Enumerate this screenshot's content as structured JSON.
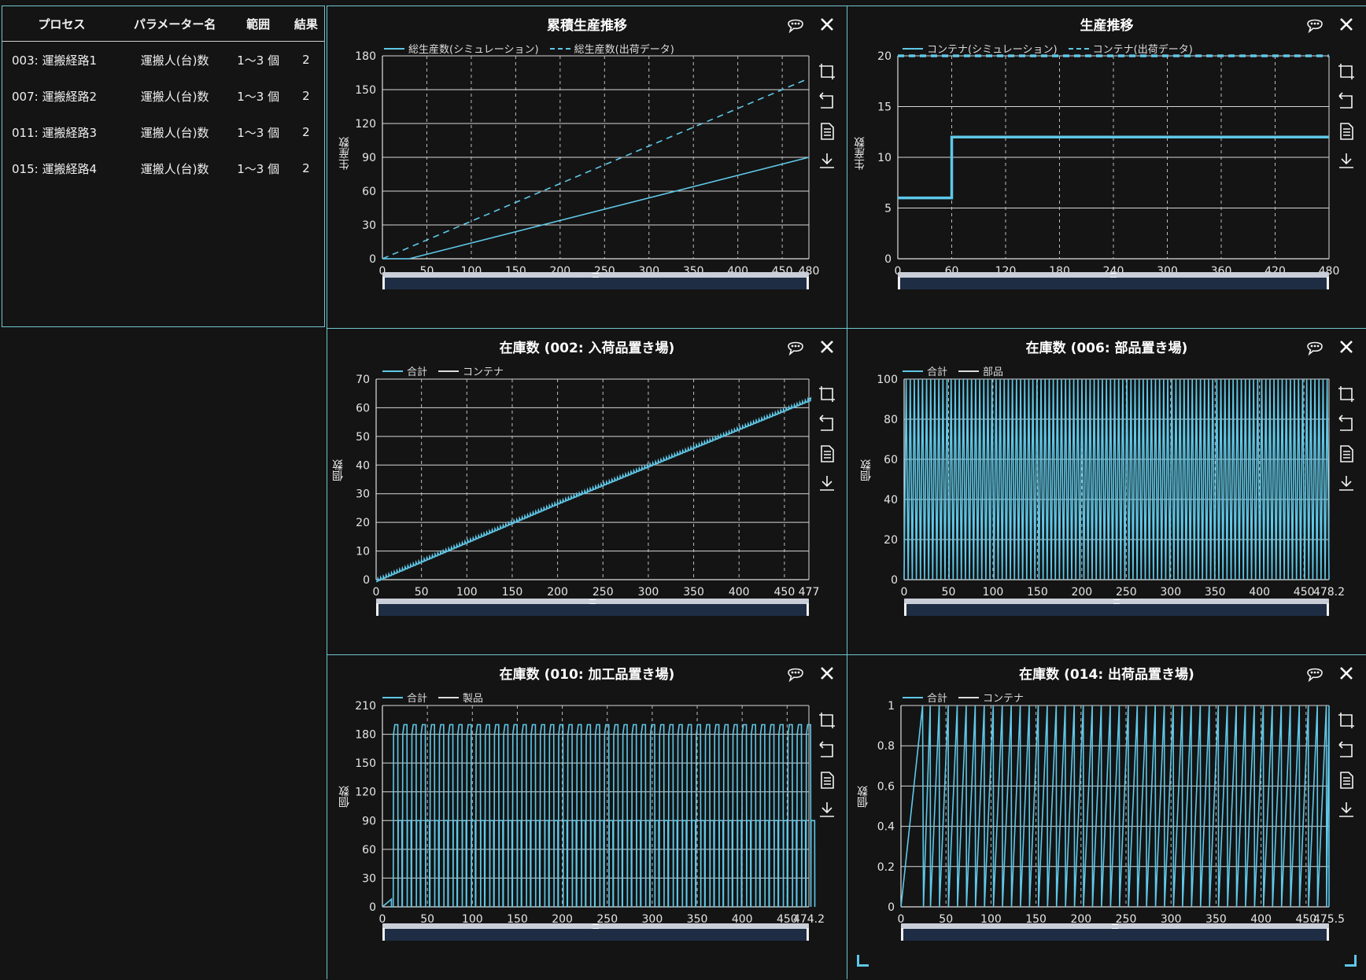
{
  "table": {
    "headers": [
      "プロセス",
      "パラメーター名",
      "範囲",
      "結果"
    ],
    "rows": [
      [
        "003: 運搬経路1",
        "運搬人(台)数",
        "1～3 個",
        "2"
      ],
      [
        "007: 運搬経路2",
        "運搬人(台)数",
        "1～3 個",
        "2"
      ],
      [
        "011: 運搬経路3",
        "運搬人(台)数",
        "1～3 個",
        "2"
      ],
      [
        "015: 運搬経路4",
        "運搬人(台)数",
        "1～3 個",
        "2"
      ]
    ]
  },
  "accent_color": "#5fc8e8",
  "icons": {
    "comment": "comment-icon",
    "close": "close-icon",
    "toolbox": [
      "zoom-select-icon",
      "zoom-reset-icon",
      "data-view-icon",
      "download-icon"
    ]
  },
  "panels": [
    {
      "title": "累積生産推移",
      "legend": [
        {
          "label": "総生産数(シミュレーション)",
          "style": "solid"
        },
        {
          "label": "総生産数(出荷データ)",
          "style": "dashed"
        }
      ],
      "ylabel": "生産数"
    },
    {
      "title": "生産推移",
      "legend": [
        {
          "label": "コンテナ(シミュレーション)",
          "style": "solid"
        },
        {
          "label": "コンテナ(出荷データ)",
          "style": "dashed"
        }
      ],
      "ylabel": "生産数"
    },
    {
      "title": "在庫数 (002: 入荷品置き場)",
      "legend": [
        {
          "label": "合計",
          "style": "solid"
        },
        {
          "label": "コンテナ",
          "style": "white"
        }
      ],
      "ylabel": "個数"
    },
    {
      "title": "在庫数 (006: 部品置き場)",
      "legend": [
        {
          "label": "合計",
          "style": "solid"
        },
        {
          "label": "部品",
          "style": "white"
        }
      ],
      "ylabel": "個数"
    },
    {
      "title": "在庫数 (010: 加工品置き場)",
      "legend": [
        {
          "label": "合計",
          "style": "solid"
        },
        {
          "label": "製品",
          "style": "white"
        }
      ],
      "ylabel": "個数"
    },
    {
      "title": "在庫数 (014: 出荷品置き場)",
      "legend": [
        {
          "label": "合計",
          "style": "solid"
        },
        {
          "label": "コンテナ",
          "style": "white"
        }
      ],
      "ylabel": "個数"
    }
  ],
  "chart_data": [
    {
      "type": "line",
      "title": "累積生産推移",
      "ylabel": "生産数",
      "xlim": [
        0,
        480
      ],
      "ylim": [
        0,
        180
      ],
      "xticks": [
        "0",
        "50",
        "100",
        "150",
        "200",
        "250",
        "300",
        "350",
        "400",
        "450",
        "480"
      ],
      "yticks": [
        "0",
        "30",
        "60",
        "90",
        "120",
        "150",
        "180"
      ],
      "series": [
        {
          "name": "総生産数(シミュレーション)",
          "dashed": false,
          "x": [
            0,
            30,
            480
          ],
          "y": [
            0,
            0,
            90
          ]
        },
        {
          "name": "総生産数(出荷データ)",
          "dashed": true,
          "x": [
            0,
            480
          ],
          "y": [
            0,
            160
          ]
        }
      ]
    },
    {
      "type": "line",
      "title": "生産推移",
      "ylabel": "生産数",
      "xlim": [
        0,
        480
      ],
      "ylim": [
        0,
        20
      ],
      "xticks": [
        "0",
        "60",
        "120",
        "180",
        "240",
        "300",
        "360",
        "420",
        "480"
      ],
      "yticks": [
        "0",
        "5",
        "10",
        "15",
        "20"
      ],
      "series": [
        {
          "name": "コンテナ(シミュレーション)",
          "dashed": false,
          "step": true,
          "x": [
            0,
            60,
            60,
            480
          ],
          "y": [
            6,
            6,
            12,
            12
          ]
        },
        {
          "name": "コンテナ(出荷データ)",
          "dashed": true,
          "x": [
            0,
            480
          ],
          "y": [
            20,
            20
          ]
        }
      ]
    },
    {
      "type": "line",
      "title": "在庫数 (002: 入荷品置き場)",
      "ylabel": "個数",
      "xlim": [
        0,
        477
      ],
      "ylim": [
        0,
        70
      ],
      "xticks": [
        "0",
        "50",
        "100",
        "150",
        "200",
        "250",
        "300",
        "350",
        "400",
        "450",
        "477"
      ],
      "yticks": [
        "0",
        "10",
        "20",
        "30",
        "40",
        "50",
        "60",
        "70"
      ],
      "pattern": "staircase",
      "series": [
        {
          "name": "合計",
          "x": [
            0,
            100,
            200,
            300,
            400,
            477
          ],
          "y": [
            0,
            13.5,
            27,
            40,
            53,
            63
          ]
        }
      ]
    },
    {
      "type": "line",
      "title": "在庫数 (006: 部品置き場)",
      "ylabel": "個数",
      "xlim": [
        0,
        478.2
      ],
      "ylim": [
        0,
        100
      ],
      "xticks": [
        "0",
        "50",
        "100",
        "150",
        "200",
        "250",
        "300",
        "350",
        "400",
        "450",
        "478.2"
      ],
      "yticks": [
        "0",
        "20",
        "40",
        "60",
        "80",
        "100"
      ],
      "pattern": "sawtooth",
      "series": [
        {
          "name": "合計",
          "period": 4.6,
          "low": 0,
          "high": 100
        }
      ]
    },
    {
      "type": "line",
      "title": "在庫数 (010: 加工品置き場)",
      "ylabel": "個数",
      "xlim": [
        0,
        474.2
      ],
      "ylim": [
        0,
        210
      ],
      "xticks": [
        "0",
        "50",
        "100",
        "150",
        "200",
        "250",
        "300",
        "350",
        "400",
        "450",
        "474.2"
      ],
      "yticks": [
        "0",
        "30",
        "60",
        "90",
        "120",
        "150",
        "180",
        "210"
      ],
      "pattern": "double-pulse",
      "series": [
        {
          "name": "合計",
          "start": 12,
          "period": 10.2,
          "levels": [
            0,
            90,
            180,
            190
          ]
        }
      ]
    },
    {
      "type": "line",
      "title": "在庫数 (014: 出荷品置き場)",
      "ylabel": "個数",
      "xlim": [
        0,
        475.5
      ],
      "ylim": [
        0,
        1
      ],
      "xticks": [
        "0",
        "50",
        "100",
        "150",
        "200",
        "250",
        "300",
        "350",
        "400",
        "450",
        "475.5"
      ],
      "yticks": [
        "0",
        "0.2",
        "0.4",
        "0.6",
        "0.8",
        "1"
      ],
      "pattern": "ramp-drop",
      "series": [
        {
          "name": "合計",
          "start": 24,
          "period": 10.0,
          "low": 0,
          "high": 1
        }
      ]
    }
  ]
}
